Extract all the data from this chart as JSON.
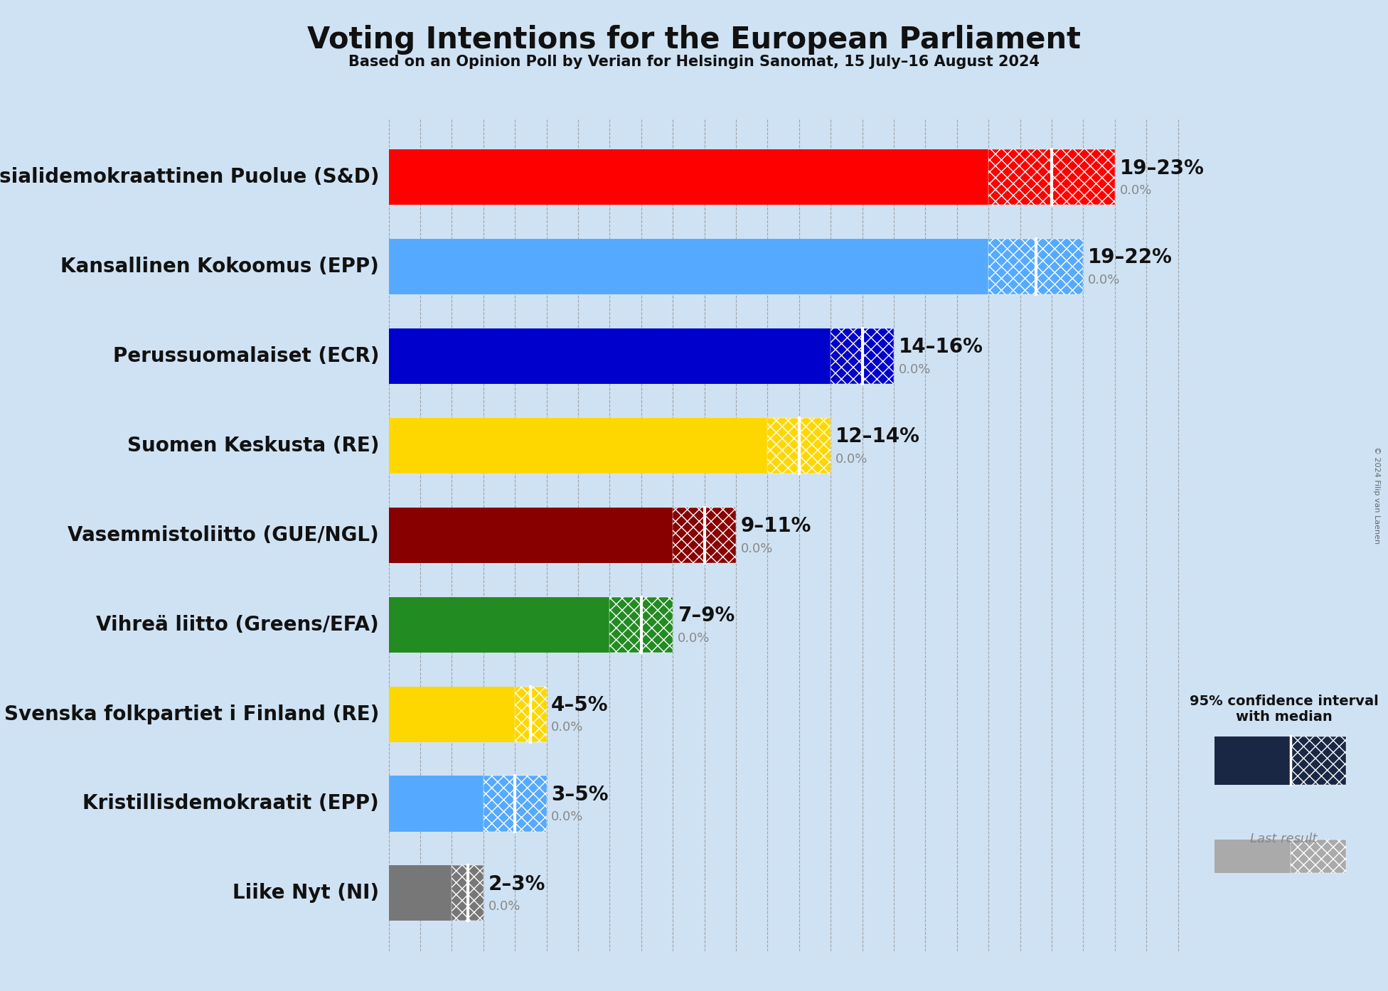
{
  "title": "Voting Intentions for the European Parliament",
  "subtitle": "Based on an Opinion Poll by Verian for Helsingin Sanomat, 15 July–16 August 2024",
  "copyright": "© 2024 Filip van Laenen",
  "background_color": "#cfe2f3",
  "parties": [
    "Suomen Sosialidemokraattinen Puolue (S&D)",
    "Kansallinen Kokoomus (EPP)",
    "Perussuomalaiset (ECR)",
    "Suomen Keskusta (RE)",
    "Vasemmistoliitto (GUE/NGL)",
    "Vihreä liitto (Greens/EFA)",
    "Svenska folkpartiet i Finland (RE)",
    "Kristillisdemokraatit (EPP)",
    "Liike Nyt (NI)"
  ],
  "colors": [
    "#FF0000",
    "#55AAFF",
    "#0000CC",
    "#FFD700",
    "#880000",
    "#228B22",
    "#FFD700",
    "#55AAFF",
    "#777777"
  ],
  "median_values": [
    21.0,
    20.5,
    15.0,
    13.0,
    10.0,
    8.0,
    4.5,
    4.0,
    2.5
  ],
  "low_values": [
    19,
    19,
    14,
    12,
    9,
    7,
    4,
    3,
    2
  ],
  "high_values": [
    23,
    22,
    16,
    14,
    11,
    9,
    5,
    5,
    3
  ],
  "labels": [
    "19–23%",
    "19–22%",
    "14–16%",
    "12–14%",
    "9–11%",
    "7–9%",
    "4–5%",
    "3–5%",
    "2–3%"
  ],
  "last_label": "0.0%",
  "xlim": [
    0,
    25.5
  ],
  "bar_height": 0.62,
  "grid_color": "#888888",
  "title_fontsize": 30,
  "subtitle_fontsize": 15,
  "label_fontsize": 20,
  "party_fontsize": 20,
  "value_fontsize": 13
}
